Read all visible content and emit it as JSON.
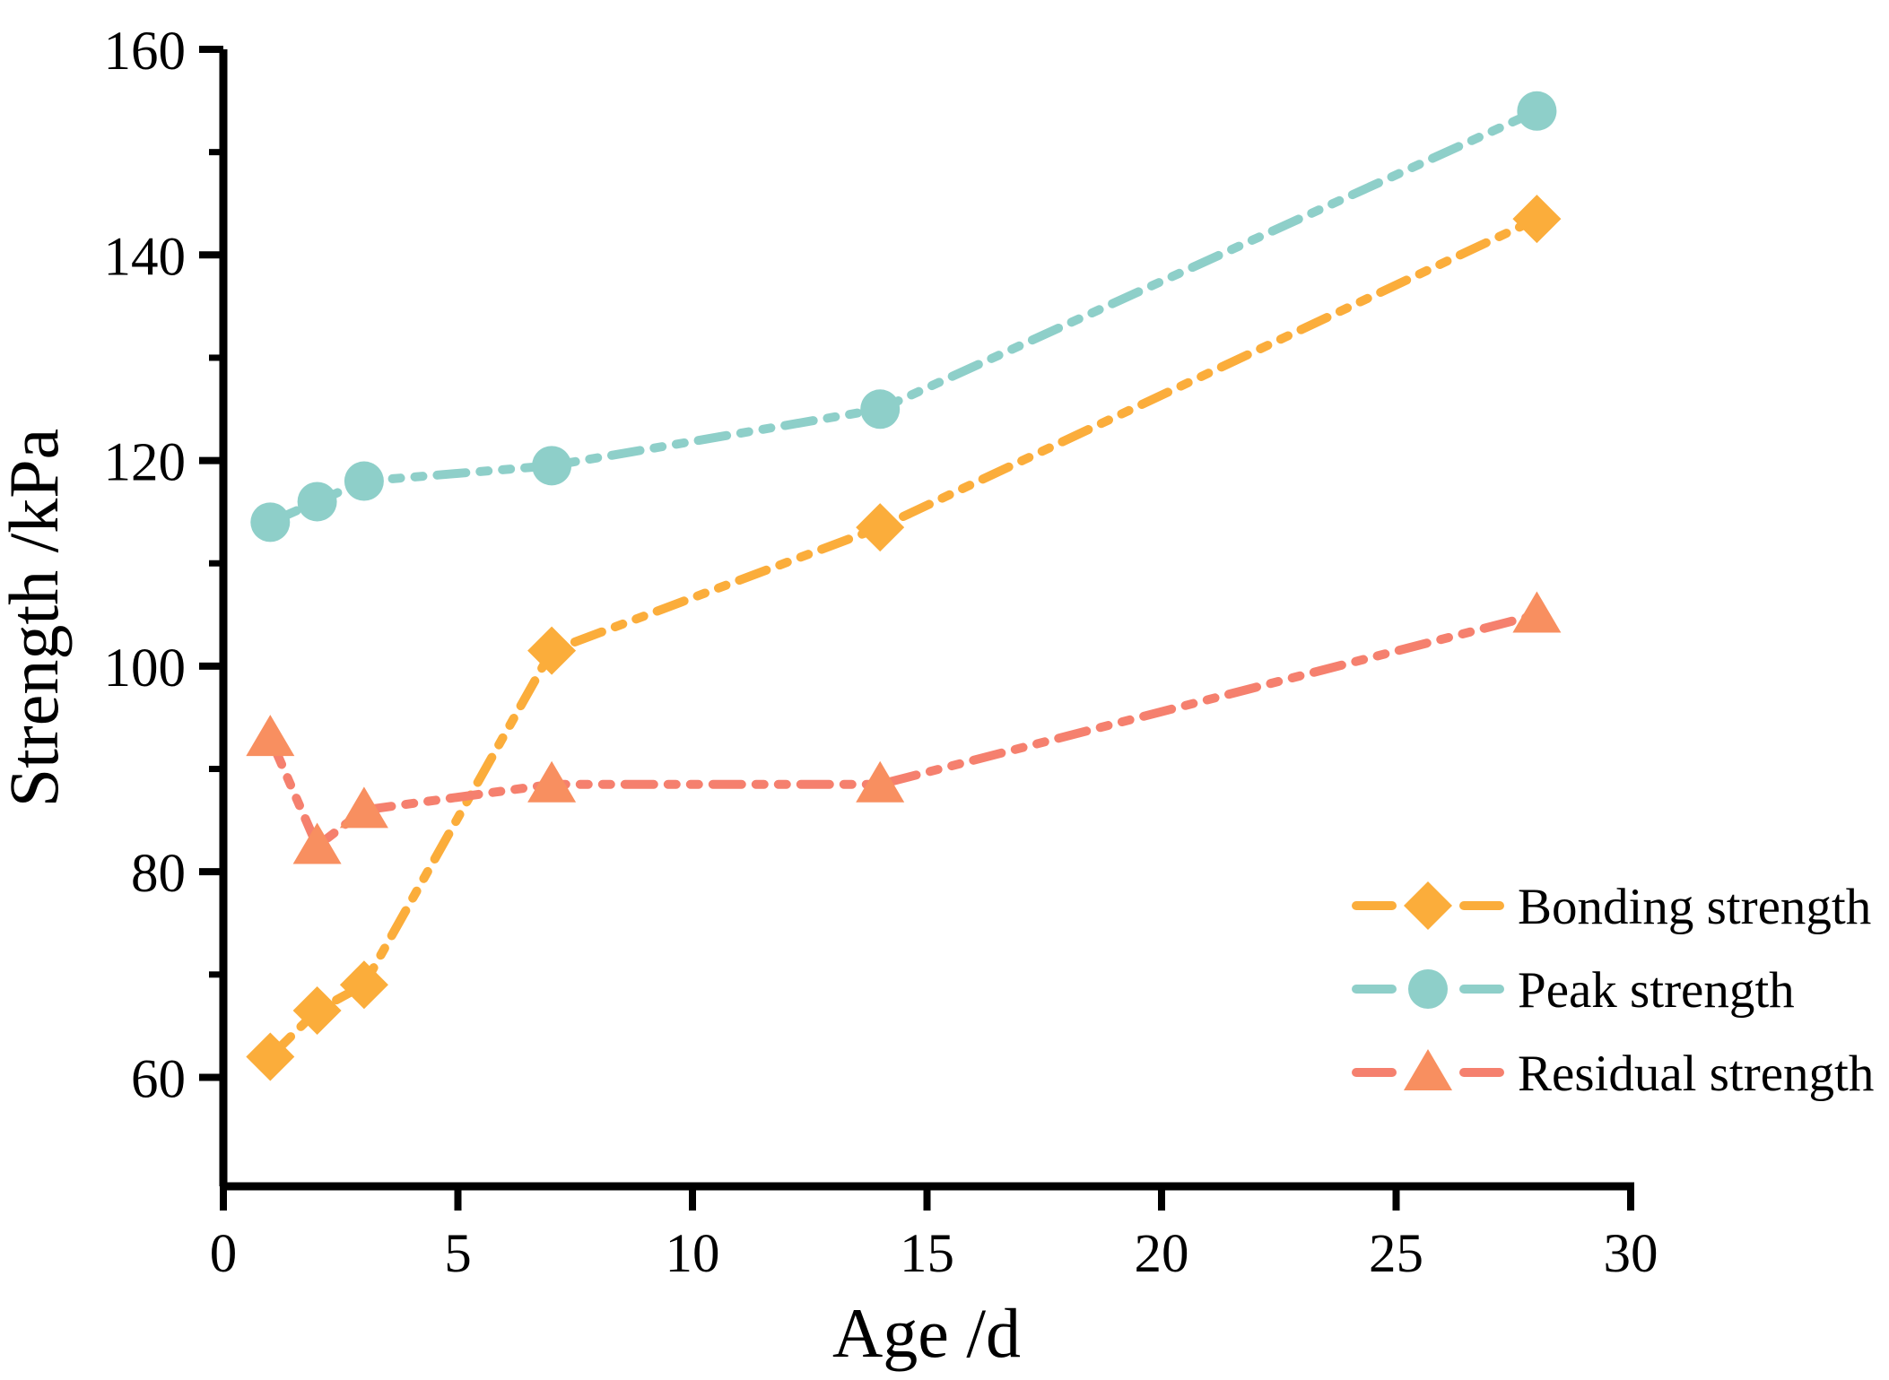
{
  "chart_data": {
    "type": "line",
    "title": "",
    "xlabel": "Age /d",
    "ylabel": "Strength /kPa",
    "x": [
      1,
      2,
      3,
      7,
      14,
      28
    ],
    "series": [
      {
        "name": "Bonding strength",
        "marker": "diamond",
        "marker_color": "#FBAD3B",
        "line_color": "#FBAD3B",
        "values": [
          62,
          66.5,
          69,
          101.5,
          113.5,
          143.5
        ]
      },
      {
        "name": "Peak strength",
        "marker": "circle",
        "marker_color": "#8ECFC9",
        "line_color": "#8ECFC9",
        "values": [
          114,
          116,
          118,
          119.5,
          125,
          154
        ]
      },
      {
        "name": "Residual strength",
        "marker": "triangle",
        "marker_color": "#F88F60",
        "line_color": "#F5806E",
        "values": [
          93,
          82.5,
          86,
          88.5,
          88.5,
          105
        ]
      }
    ],
    "axes": {
      "xlim": [
        0,
        30
      ],
      "ylim": [
        49.4,
        160
      ],
      "xticks": [
        0,
        5,
        10,
        15,
        20,
        25,
        30
      ],
      "yticks_major": [
        60,
        80,
        100,
        120,
        140,
        160
      ],
      "yticks_minor": [
        70,
        90,
        110,
        130,
        150
      ],
      "grid": false,
      "axis_color": "#000000"
    },
    "line_style": "dash-dot-dot",
    "legend": {
      "position": "right-middle",
      "entries": [
        "Bonding strength",
        "Peak strength",
        "Residual strength"
      ]
    },
    "background": "#FFFFFF"
  }
}
